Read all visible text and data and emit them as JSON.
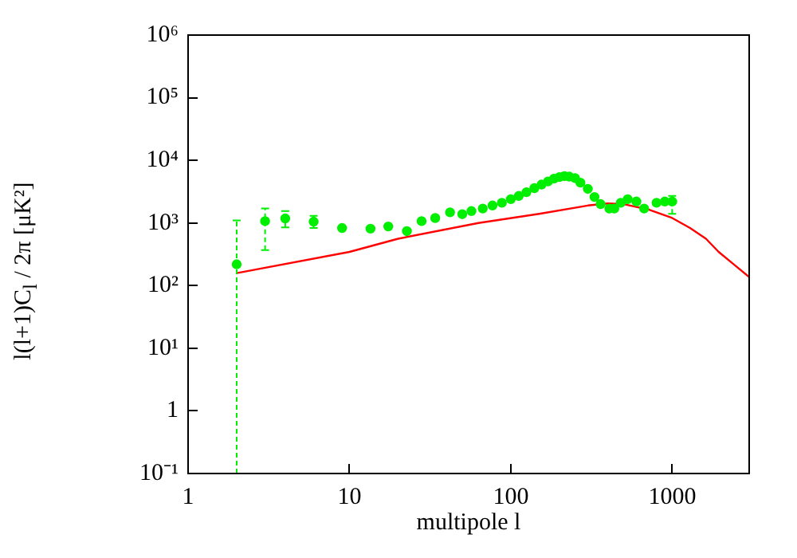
{
  "chart_data": {
    "type": "scatter",
    "xlabel": "multipole l",
    "ylabel": "l(l+1)C$_{l}$ / 2π [μK²]",
    "log": "xy",
    "grid": false,
    "legend": false,
    "marker": "circle",
    "xlim": [
      1,
      3000
    ],
    "xticks": [
      1,
      10,
      100,
      1000
    ],
    "ylim": [
      0.1,
      1000000
    ],
    "yticks": [
      {
        "value": 0.1,
        "label": "10⁻¹"
      },
      1,
      {
        "value": 10,
        "label": "10¹"
      },
      {
        "value": 100,
        "label": "10²"
      },
      {
        "value": 1000,
        "label": "10³"
      },
      {
        "value": 10000,
        "label": "10⁴"
      },
      {
        "value": 100000,
        "label": "10⁵"
      },
      {
        "value": 1000000,
        "label": "10⁶"
      }
    ],
    "series": [
      {
        "color": "#00ee00",
        "x": [
          2,
          3,
          4,
          6,
          9,
          13.5,
          17.4,
          22.7,
          28,
          34,
          42,
          50,
          57,
          67,
          77,
          88,
          100,
          112,
          125,
          140,
          155,
          170,
          185,
          200,
          215,
          230,
          250,
          270,
          300,
          330,
          360,
          408,
          438,
          480,
          530,
          600,
          670,
          800,
          900,
          1000
        ],
        "values": [
          219,
          1070,
          1180,
          1050,
          830,
          810,
          880,
          740,
          1070,
          1200,
          1480,
          1380,
          1550,
          1700,
          1900,
          2100,
          2400,
          2700,
          3100,
          3600,
          4100,
          4600,
          5100,
          5400,
          5600,
          5500,
          5200,
          4400,
          3500,
          2600,
          2000,
          1700,
          1700,
          2100,
          2400,
          2200,
          1700,
          2100,
          2200,
          2200
        ],
        "errors": [
          [
            0.1,
            1100
          ],
          [
            370,
            1700
          ],
          [
            850,
            1550
          ],
          [
            830,
            1300
          ],
          null,
          null,
          null,
          null,
          null,
          null,
          null,
          null,
          null,
          null,
          null,
          null,
          null,
          null,
          null,
          null,
          null,
          null,
          null,
          null,
          null,
          null,
          null,
          null,
          null,
          null,
          null,
          null,
          null,
          null,
          null,
          null,
          null,
          null,
          null,
          [
            1400,
            2700
          ]
        ]
      },
      {
        "type": "line",
        "color": "#ff0000",
        "marker": "none",
        "x": [
          2,
          10,
          20,
          63,
          150,
          300,
          400,
          500,
          720,
          1000,
          1290,
          1620,
          1940,
          2400,
          3000
        ],
        "values": [
          158,
          345,
          560,
          1000,
          1400,
          1900,
          2050,
          2000,
          1630,
          1200,
          830,
          560,
          345,
          220,
          137
        ]
      }
    ]
  }
}
